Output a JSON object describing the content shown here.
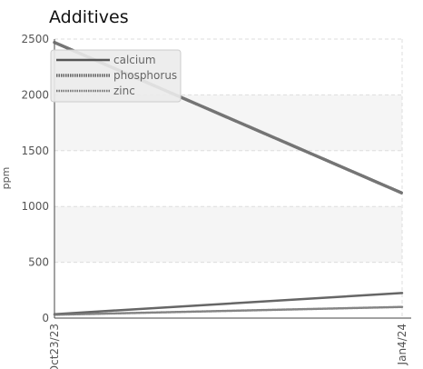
{
  "chart_data": {
    "type": "line",
    "title": "Additives",
    "xlabel": "",
    "ylabel": "ppm",
    "x": [
      "Oct23/23",
      "Jan4/24"
    ],
    "ylim": [
      0,
      2500
    ],
    "yticks": [
      0,
      500,
      1000,
      1500,
      2000,
      2500
    ],
    "grid": true,
    "legend_position": "top-left",
    "series": [
      {
        "name": "calcium",
        "values": [
          35,
          225
        ],
        "color": "#555555"
      },
      {
        "name": "phosphorus",
        "values": [
          2470,
          1120
        ],
        "color": "#666666"
      },
      {
        "name": "zinc",
        "values": [
          30,
          100
        ],
        "color": "#777777"
      }
    ]
  }
}
